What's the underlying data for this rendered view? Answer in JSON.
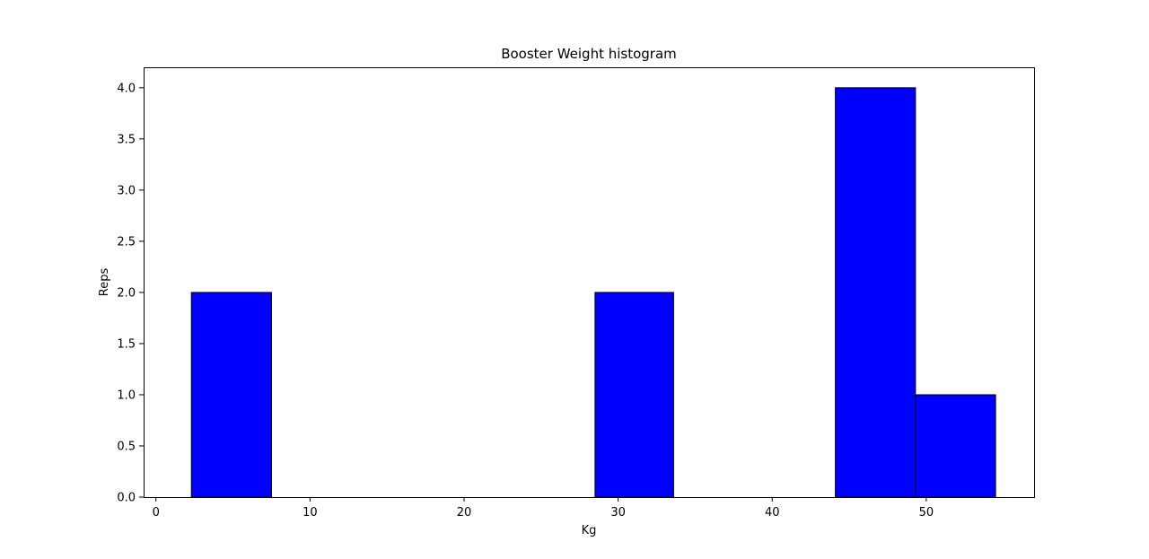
{
  "chart_data": {
    "type": "bar",
    "title": "Booster Weight histogram",
    "xlabel": "Kg",
    "ylabel": "Reps",
    "xlim": [
      -0.8,
      57.0
    ],
    "ylim": [
      0,
      4.2
    ],
    "xticks": [
      0,
      10,
      20,
      30,
      40,
      50
    ],
    "yticks": [
      0.0,
      0.5,
      1.0,
      1.5,
      2.0,
      2.5,
      3.0,
      3.5,
      4.0
    ],
    "bins": [
      {
        "x0": 2.3,
        "x1": 7.5,
        "value": 2
      },
      {
        "x0": 28.5,
        "x1": 33.6,
        "value": 2
      },
      {
        "x0": 44.1,
        "x1": 49.3,
        "value": 4
      },
      {
        "x0": 49.3,
        "x1": 54.5,
        "value": 1
      }
    ],
    "bar_color": "#0000ff",
    "edge_color": "#000000",
    "grid": false,
    "legend": "none"
  }
}
